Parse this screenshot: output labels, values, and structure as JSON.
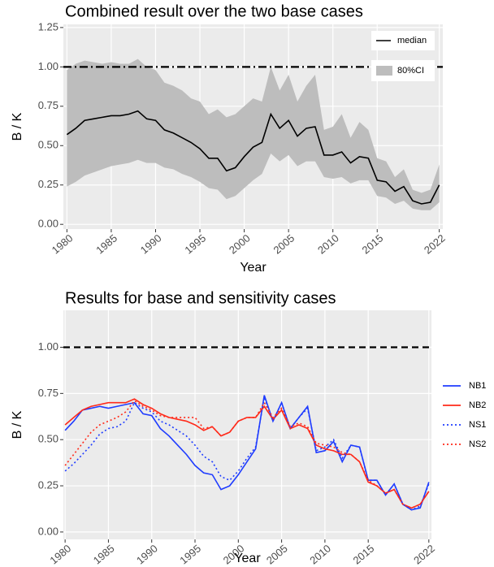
{
  "chart_data": [
    {
      "type": "line",
      "title": "Combined result over the two base cases",
      "xlabel": "Year",
      "ylabel": "B / K",
      "x": [
        1980,
        1981,
        1982,
        1983,
        1984,
        1985,
        1986,
        1987,
        1988,
        1989,
        1990,
        1991,
        1992,
        1993,
        1994,
        1995,
        1996,
        1997,
        1998,
        1999,
        2000,
        2001,
        2002,
        2003,
        2004,
        2005,
        2006,
        2007,
        2008,
        2009,
        2010,
        2011,
        2012,
        2013,
        2014,
        2015,
        2016,
        2017,
        2018,
        2019,
        2020,
        2021,
        2022
      ],
      "series": [
        {
          "name": "median",
          "color": "#000000",
          "dash": "solid",
          "values": [
            0.57,
            0.61,
            0.66,
            0.67,
            0.68,
            0.69,
            0.69,
            0.7,
            0.72,
            0.67,
            0.66,
            0.6,
            0.58,
            0.55,
            0.52,
            0.48,
            0.42,
            0.42,
            0.34,
            0.36,
            0.43,
            0.49,
            0.52,
            0.7,
            0.61,
            0.66,
            0.56,
            0.61,
            0.62,
            0.44,
            0.44,
            0.46,
            0.39,
            0.43,
            0.42,
            0.28,
            0.27,
            0.21,
            0.24,
            0.15,
            0.13,
            0.14,
            0.25
          ]
        }
      ],
      "band": {
        "name": "80%CI",
        "color": "#bdbdbd",
        "upper": [
          0.98,
          1.02,
          1.04,
          1.03,
          1.02,
          1.03,
          1.02,
          1.02,
          1.05,
          1.0,
          0.98,
          0.9,
          0.88,
          0.85,
          0.8,
          0.78,
          0.7,
          0.73,
          0.68,
          0.7,
          0.75,
          0.8,
          0.78,
          1.0,
          0.85,
          0.95,
          0.78,
          0.88,
          0.95,
          0.6,
          0.62,
          0.7,
          0.55,
          0.65,
          0.6,
          0.42,
          0.4,
          0.3,
          0.35,
          0.22,
          0.2,
          0.22,
          0.38
        ],
        "lower": [
          0.24,
          0.27,
          0.31,
          0.33,
          0.35,
          0.37,
          0.38,
          0.39,
          0.41,
          0.39,
          0.39,
          0.36,
          0.35,
          0.32,
          0.3,
          0.27,
          0.23,
          0.22,
          0.16,
          0.18,
          0.23,
          0.28,
          0.32,
          0.45,
          0.4,
          0.44,
          0.37,
          0.4,
          0.4,
          0.3,
          0.29,
          0.3,
          0.26,
          0.28,
          0.28,
          0.18,
          0.17,
          0.13,
          0.15,
          0.1,
          0.09,
          0.09,
          0.14
        ]
      },
      "hline": {
        "value": 1,
        "style": "dashdot"
      },
      "xlim": [
        1979.6,
        2022.4
      ],
      "xticks": [
        1980,
        1985,
        1990,
        1995,
        2000,
        2005,
        2010,
        2015,
        2022
      ],
      "ylim": [
        -0.03,
        1.27
      ],
      "yticks": [
        {
          "value": 0,
          "label": "0.00"
        },
        {
          "value": 0.25,
          "label": "0.25"
        },
        {
          "value": 0.5,
          "label": "0.50"
        },
        {
          "value": 0.75,
          "label": "0.75"
        },
        {
          "value": 1,
          "label": "1.00"
        },
        {
          "value": 1.25,
          "label": "1.25"
        }
      ],
      "grid": true,
      "legend": "top-right"
    },
    {
      "type": "line",
      "title": "Results for base and sensitivity cases",
      "xlabel": "Year",
      "ylabel": "B / K",
      "x": [
        1980,
        1981,
        1982,
        1983,
        1984,
        1985,
        1986,
        1987,
        1988,
        1989,
        1990,
        1991,
        1992,
        1993,
        1994,
        1995,
        1996,
        1997,
        1998,
        1999,
        2000,
        2001,
        2002,
        2003,
        2004,
        2005,
        2006,
        2007,
        2008,
        2009,
        2010,
        2011,
        2012,
        2013,
        2014,
        2015,
        2016,
        2017,
        2018,
        2019,
        2020,
        2021,
        2022
      ],
      "series": [
        {
          "name": "NB1",
          "color": "#1f3cff",
          "dash": "solid",
          "values": [
            0.55,
            0.6,
            0.66,
            0.67,
            0.68,
            0.67,
            0.68,
            0.69,
            0.7,
            0.64,
            0.63,
            0.56,
            0.52,
            0.47,
            0.42,
            0.36,
            0.32,
            0.31,
            0.23,
            0.25,
            0.31,
            0.38,
            0.45,
            0.74,
            0.6,
            0.7,
            0.56,
            0.62,
            0.68,
            0.43,
            0.44,
            0.49,
            0.38,
            0.47,
            0.46,
            0.28,
            0.28,
            0.2,
            0.26,
            0.15,
            0.12,
            0.13,
            0.27
          ]
        },
        {
          "name": "NB2",
          "color": "#ff2a1a",
          "dash": "solid",
          "values": [
            0.58,
            0.62,
            0.66,
            0.68,
            0.69,
            0.7,
            0.7,
            0.7,
            0.72,
            0.69,
            0.67,
            0.64,
            0.62,
            0.61,
            0.6,
            0.58,
            0.55,
            0.57,
            0.52,
            0.54,
            0.6,
            0.62,
            0.62,
            0.68,
            0.61,
            0.66,
            0.56,
            0.58,
            0.56,
            0.47,
            0.45,
            0.44,
            0.42,
            0.42,
            0.38,
            0.27,
            0.25,
            0.21,
            0.23,
            0.15,
            0.13,
            0.15,
            0.22
          ]
        },
        {
          "name": "NS1",
          "color": "#1f3cff",
          "dash": "dotted",
          "values": [
            0.33,
            0.37,
            0.42,
            0.47,
            0.53,
            0.56,
            0.57,
            0.6,
            0.7,
            0.67,
            0.65,
            0.6,
            0.58,
            0.55,
            0.52,
            0.47,
            0.41,
            0.38,
            0.3,
            0.28,
            0.33,
            0.4,
            0.46,
            0.73,
            0.6,
            0.7,
            0.56,
            0.62,
            0.67,
            0.44,
            0.46,
            0.5,
            0.4,
            0.47,
            0.46,
            0.28,
            0.28,
            0.2,
            0.26,
            0.15,
            0.12,
            0.14,
            0.26
          ]
        },
        {
          "name": "NS2",
          "color": "#ff2a1a",
          "dash": "dotted",
          "values": [
            0.36,
            0.42,
            0.48,
            0.54,
            0.58,
            0.6,
            0.62,
            0.65,
            0.71,
            0.68,
            0.66,
            0.63,
            0.62,
            0.62,
            0.62,
            0.62,
            0.56,
            0.57,
            0.52,
            0.54,
            0.6,
            0.62,
            0.62,
            0.7,
            0.62,
            0.67,
            0.57,
            0.59,
            0.57,
            0.48,
            0.47,
            0.46,
            0.43,
            0.42,
            0.38,
            0.28,
            0.25,
            0.21,
            0.23,
            0.15,
            0.13,
            0.15,
            0.22
          ]
        }
      ],
      "hline": {
        "value": 1,
        "style": "dashed"
      },
      "xlim": [
        1979.8,
        2022.3
      ],
      "xticks": [
        1980,
        1985,
        1990,
        1995,
        2000,
        2005,
        2010,
        2015,
        2022
      ],
      "ylim": [
        -0.04,
        1.2
      ],
      "yticks": [
        {
          "value": 0,
          "label": "0.00"
        },
        {
          "value": 0.25,
          "label": "0.25"
        },
        {
          "value": 0.5,
          "label": "0.50"
        },
        {
          "value": 0.75,
          "label": "0.75"
        },
        {
          "value": 1,
          "label": "1.00"
        }
      ],
      "grid": true,
      "legend": "right"
    }
  ]
}
